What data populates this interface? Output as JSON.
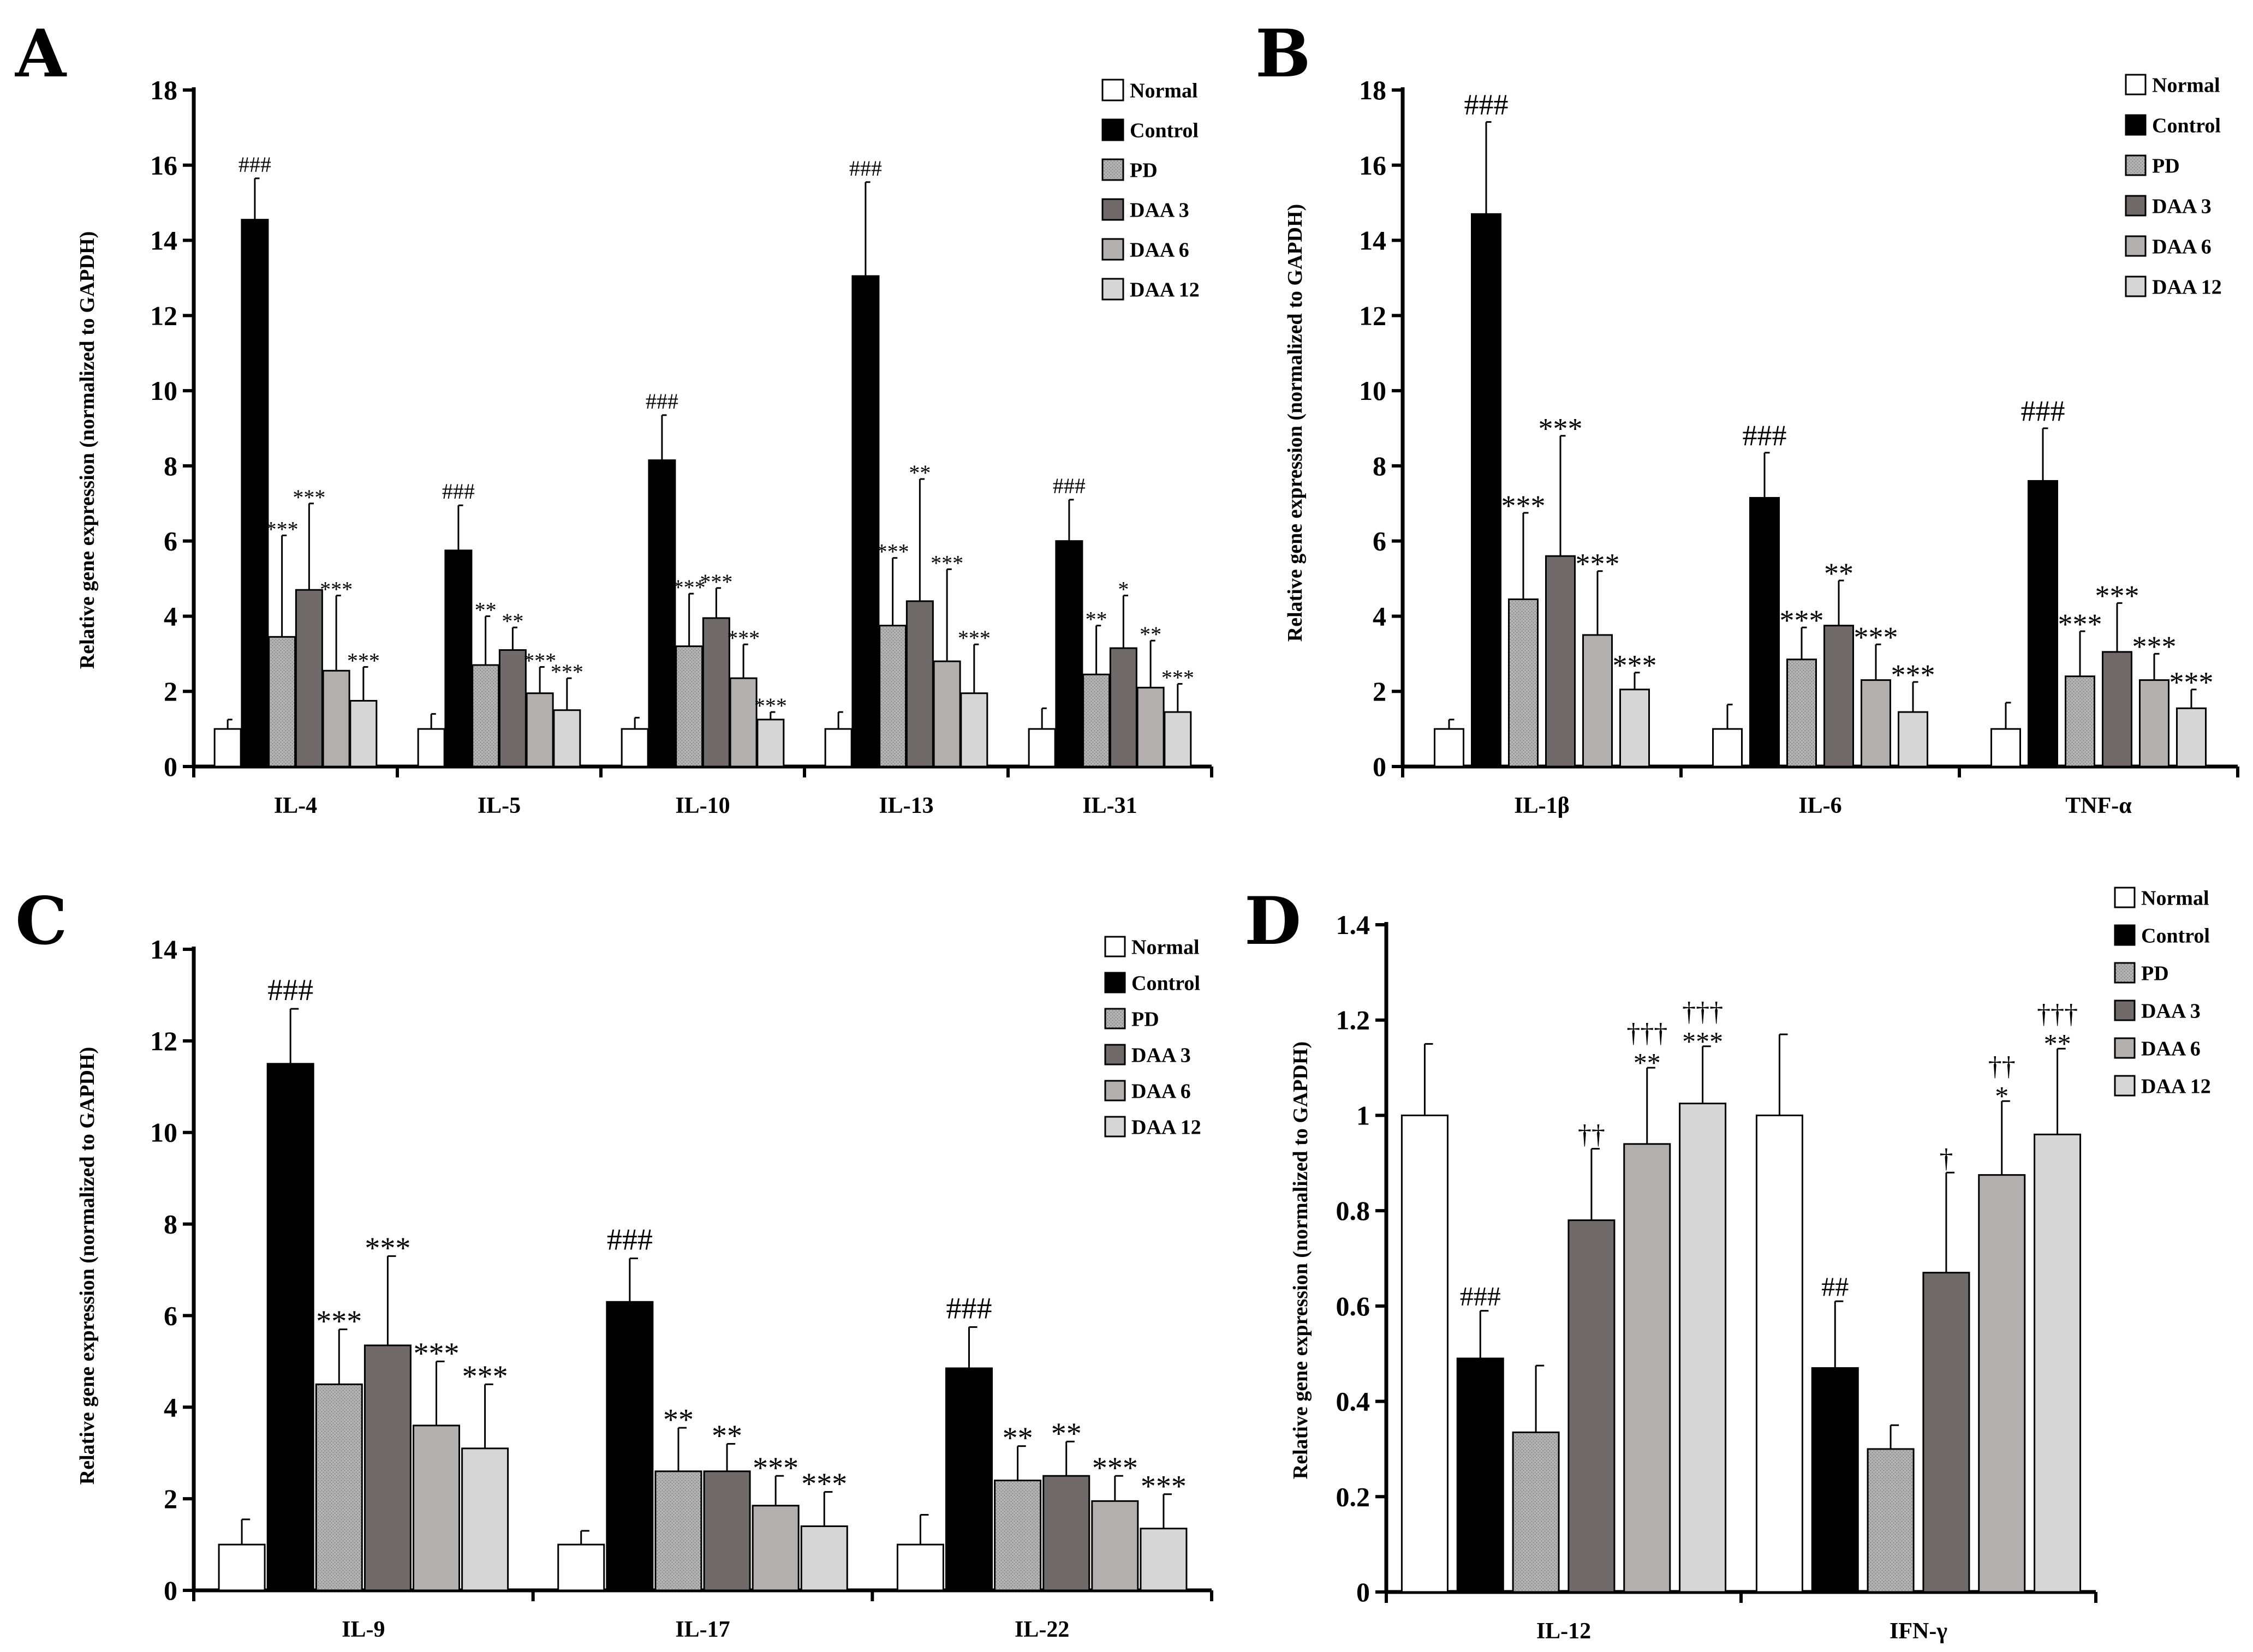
{
  "colors": {
    "Normal": "#ffffff",
    "Control": "#000000",
    "PD": "#a9a9a9",
    "DAA 3": "#706a6a",
    "DAA 6": "#b3afaf",
    "DAA 12": "#d6d6d6"
  },
  "chart_data": [
    {
      "panel": "A",
      "type": "bar",
      "ylabel": "Relative gene expression   (normalized to GAPDH)",
      "ylim": [
        0,
        18
      ],
      "yticks": [
        "0",
        "2",
        "4",
        "6",
        "8",
        "10",
        "12",
        "14",
        "16",
        "18"
      ],
      "categories": [
        "IL-4",
        "IL-5",
        "IL-10",
        "IL-13",
        "IL-31"
      ],
      "legend": [
        "Normal",
        "Control",
        "PD",
        "DAA 3",
        "DAA 6",
        "DAA 12"
      ],
      "series": [
        {
          "name": "Normal",
          "values": [
            1.0,
            1.0,
            1.0,
            1.0,
            1.0
          ],
          "errors": [
            0.25,
            0.4,
            0.3,
            0.45,
            0.55
          ],
          "labels": [
            "",
            "",
            "",
            "",
            ""
          ]
        },
        {
          "name": "Control",
          "values": [
            14.55,
            5.75,
            8.15,
            13.05,
            6.0
          ],
          "errors": [
            1.1,
            1.2,
            1.2,
            2.5,
            1.1
          ],
          "labels": [
            "###",
            "###",
            "###",
            "###",
            "###"
          ]
        },
        {
          "name": "PD",
          "values": [
            3.45,
            2.7,
            3.2,
            3.75,
            2.45
          ],
          "errors": [
            2.7,
            1.3,
            1.4,
            1.8,
            1.3
          ],
          "labels": [
            "***",
            "**",
            "***",
            "***",
            "**"
          ]
        },
        {
          "name": "DAA 3",
          "values": [
            4.7,
            3.1,
            3.95,
            4.4,
            3.15
          ],
          "errors": [
            2.3,
            0.6,
            0.8,
            3.25,
            1.4
          ],
          "labels": [
            "***",
            "**",
            "***",
            "**",
            "*"
          ]
        },
        {
          "name": "DAA 6",
          "values": [
            2.55,
            1.95,
            2.35,
            2.8,
            2.1
          ],
          "errors": [
            2.0,
            0.7,
            0.9,
            2.45,
            1.25
          ],
          "labels": [
            "***",
            "***",
            "***",
            "***",
            "**"
          ]
        },
        {
          "name": "DAA 12",
          "values": [
            1.75,
            1.5,
            1.25,
            1.95,
            1.45
          ],
          "errors": [
            0.9,
            0.85,
            0.2,
            1.3,
            0.75
          ],
          "labels": [
            "***",
            "***",
            "***",
            "***",
            "***"
          ]
        }
      ]
    },
    {
      "panel": "B",
      "type": "bar",
      "ylabel": "Relative gene expression   (normalized to GAPDH)",
      "ylim": [
        0,
        18
      ],
      "yticks": [
        "0",
        "2",
        "4",
        "6",
        "8",
        "10",
        "12",
        "14",
        "16",
        "18"
      ],
      "categories": [
        "IL-1β",
        "IL-6",
        "TNF-α"
      ],
      "legend": [
        "Normal",
        "Control",
        "PD",
        "DAA 3",
        "DAA 6",
        "DAA 12"
      ],
      "series": [
        {
          "name": "Normal",
          "values": [
            1.0,
            1.0,
            1.0
          ],
          "errors": [
            0.25,
            0.65,
            0.7
          ],
          "labels": [
            "",
            "",
            ""
          ]
        },
        {
          "name": "Control",
          "values": [
            14.7,
            7.15,
            7.6
          ],
          "errors": [
            2.45,
            1.2,
            1.4
          ],
          "labels": [
            "###",
            "###",
            "###"
          ]
        },
        {
          "name": "PD",
          "values": [
            4.45,
            2.85,
            2.4
          ],
          "errors": [
            2.3,
            0.85,
            1.2
          ],
          "labels": [
            "***",
            "***",
            "***"
          ]
        },
        {
          "name": "DAA 3",
          "values": [
            5.6,
            3.75,
            3.05
          ],
          "errors": [
            3.2,
            1.2,
            1.3
          ],
          "labels": [
            "***",
            "**",
            "***"
          ]
        },
        {
          "name": "DAA 6",
          "values": [
            3.5,
            2.3,
            2.3
          ],
          "errors": [
            1.7,
            0.95,
            0.7
          ],
          "labels": [
            "***",
            "***",
            "***"
          ]
        },
        {
          "name": "DAA 12",
          "values": [
            2.05,
            1.45,
            1.55
          ],
          "errors": [
            0.45,
            0.8,
            0.5
          ],
          "labels": [
            "***",
            "***",
            "***"
          ]
        }
      ]
    },
    {
      "panel": "C",
      "type": "bar",
      "ylabel": "Relative gene expression   (normalized to GAPDH)",
      "ylim": [
        0,
        14
      ],
      "yticks": [
        "0",
        "2",
        "4",
        "6",
        "8",
        "10",
        "12",
        "14"
      ],
      "categories": [
        "IL-9",
        "IL-17",
        "IL-22"
      ],
      "legend": [
        "Normal",
        "Control",
        "PD",
        "DAA 3",
        "DAA 6",
        "DAA 12"
      ],
      "series": [
        {
          "name": "Normal",
          "values": [
            1.0,
            1.0,
            1.0
          ],
          "errors": [
            0.55,
            0.3,
            0.65
          ],
          "labels": [
            "",
            "",
            ""
          ]
        },
        {
          "name": "Control",
          "values": [
            11.5,
            6.3,
            4.85
          ],
          "errors": [
            1.2,
            0.95,
            0.9
          ],
          "labels": [
            "###",
            "###",
            "###"
          ]
        },
        {
          "name": "PD",
          "values": [
            4.5,
            2.6,
            2.4
          ],
          "errors": [
            1.2,
            0.95,
            0.75
          ],
          "labels": [
            "***",
            "**",
            "**"
          ]
        },
        {
          "name": "DAA 3",
          "values": [
            5.35,
            2.6,
            2.5
          ],
          "errors": [
            1.95,
            0.6,
            0.75
          ],
          "labels": [
            "***",
            "**",
            "**"
          ]
        },
        {
          "name": "DAA 6",
          "values": [
            3.6,
            1.85,
            1.95
          ],
          "errors": [
            1.4,
            0.65,
            0.55
          ],
          "labels": [
            "***",
            "***",
            "***"
          ]
        },
        {
          "name": "DAA 12",
          "values": [
            3.1,
            1.4,
            1.35
          ],
          "errors": [
            1.4,
            0.75,
            0.75
          ],
          "labels": [
            "***",
            "***",
            "***"
          ]
        }
      ]
    },
    {
      "panel": "D",
      "type": "bar",
      "ylabel": "Relative gene expression   (normalized to GAPDH)",
      "ylim": [
        0,
        1.4
      ],
      "yticks": [
        "0",
        "0.2",
        "0.4",
        "0.6",
        "0.8",
        "1",
        "1.2",
        "1.4"
      ],
      "categories": [
        "IL-12",
        "IFN-γ"
      ],
      "legend": [
        "Normal",
        "Control",
        "PD",
        "DAA 3",
        "DAA 6",
        "DAA 12"
      ],
      "series": [
        {
          "name": "Normal",
          "values": [
            1.0,
            1.0
          ],
          "errors": [
            0.15,
            0.17
          ],
          "labels": [
            "",
            ""
          ]
        },
        {
          "name": "Control",
          "values": [
            0.49,
            0.47
          ],
          "errors": [
            0.1,
            0.14
          ],
          "labels": [
            "###",
            "##"
          ]
        },
        {
          "name": "PD",
          "values": [
            0.335,
            0.3
          ],
          "errors": [
            0.14,
            0.05
          ],
          "labels": [
            "",
            ""
          ]
        },
        {
          "name": "DAA 3",
          "values": [
            0.78,
            0.67
          ],
          "errors": [
            0.15,
            0.21
          ],
          "labels": [
            "††",
            "†"
          ]
        },
        {
          "name": "DAA 6",
          "values": [
            0.94,
            0.875
          ],
          "errors": [
            0.16,
            0.155
          ],
          "labels": [
            "†††\n**",
            "††\n*"
          ]
        },
        {
          "name": "DAA 12",
          "values": [
            1.025,
            0.96
          ],
          "errors": [
            0.12,
            0.18
          ],
          "labels": [
            "†††\n***",
            "†††\n**"
          ]
        }
      ]
    }
  ]
}
